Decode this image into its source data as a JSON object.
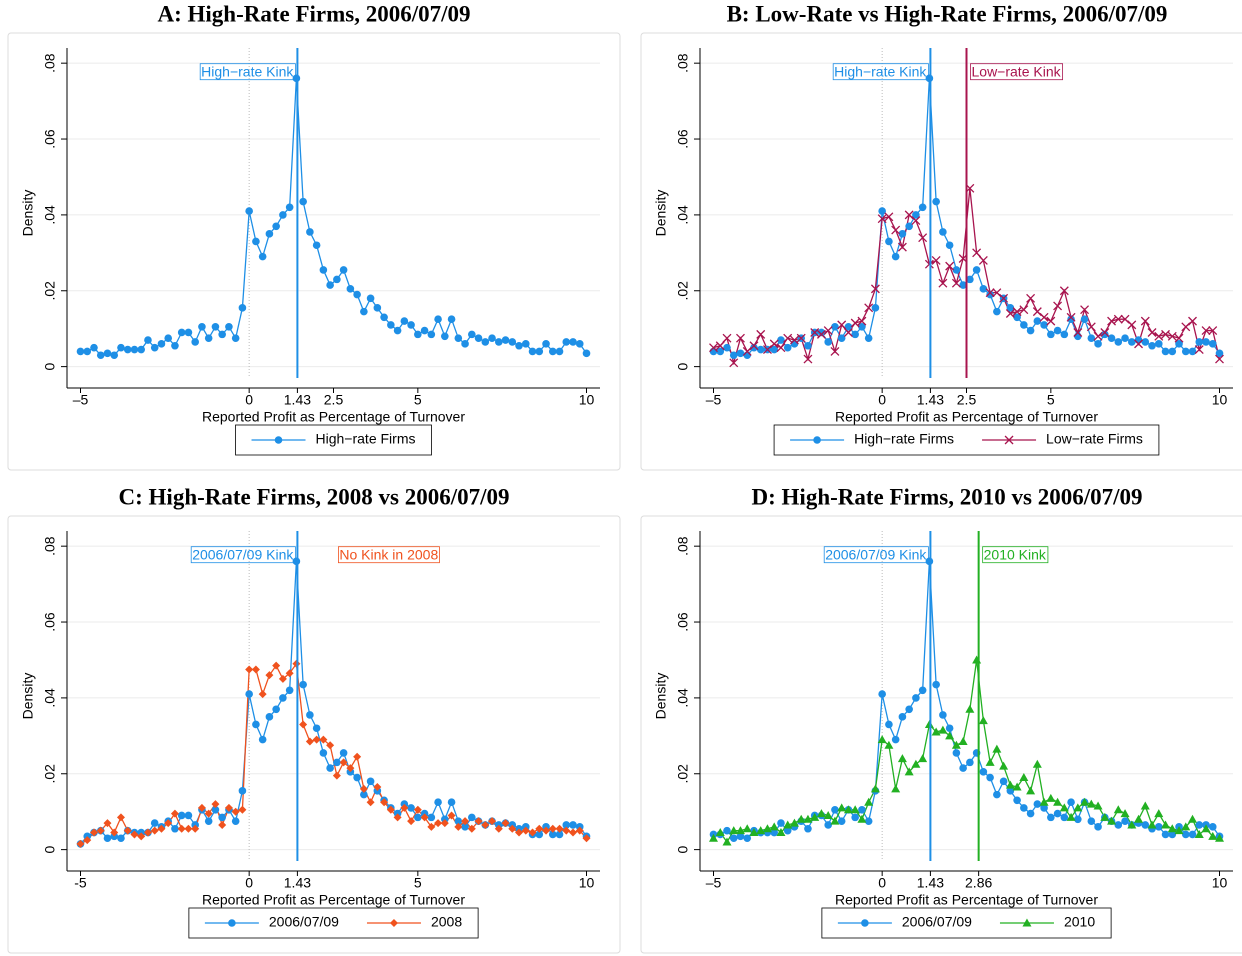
{
  "chart_data": [
    {
      "type": "line",
      "title": "A: High-Rate Firms, 2006/07/09",
      "xlabel": "Reported Profit as Percentage of Turnover",
      "ylabel": "Density",
      "x": [
        -5,
        -4.8,
        -4.6,
        -4.4,
        -4.2,
        -4,
        -3.8,
        -3.6,
        -3.4,
        -3.2,
        -3,
        -2.8,
        -2.6,
        -2.4,
        -2.2,
        -2,
        -1.8,
        -1.6,
        -1.4,
        -1.2,
        -1,
        -0.8,
        -0.6,
        -0.4,
        -0.2,
        0,
        0.2,
        0.4,
        0.6,
        0.8,
        1,
        1.2,
        1.4,
        1.6,
        1.8,
        2,
        2.2,
        2.4,
        2.6,
        2.8,
        3,
        3.2,
        3.4,
        3.6,
        3.8,
        4,
        4.2,
        4.4,
        4.6,
        4.8,
        5,
        5.2,
        5.4,
        5.6,
        5.8,
        6,
        6.2,
        6.4,
        6.6,
        6.8,
        7,
        7.2,
        7.4,
        7.6,
        7.8,
        8,
        8.2,
        8.4,
        8.6,
        8.8,
        9,
        9.2,
        9.4,
        9.6,
        9.8,
        10
      ],
      "series": [
        {
          "name": "High−rate Firms",
          "color": "#1e8fe6",
          "marker": "circle",
          "values": [
            0.004,
            0.004,
            0.005,
            0.003,
            0.0035,
            0.003,
            0.005,
            0.0045,
            0.0045,
            0.0045,
            0.007,
            0.005,
            0.006,
            0.0075,
            0.0055,
            0.009,
            0.009,
            0.0065,
            0.0105,
            0.0075,
            0.0105,
            0.0085,
            0.0105,
            0.0075,
            0.0155,
            0.041,
            0.033,
            0.029,
            0.035,
            0.037,
            0.04,
            0.042,
            0.076,
            0.0435,
            0.0355,
            0.032,
            0.0255,
            0.0215,
            0.023,
            0.0255,
            0.0205,
            0.019,
            0.0145,
            0.018,
            0.0155,
            0.013,
            0.011,
            0.0095,
            0.012,
            0.011,
            0.0085,
            0.0095,
            0.0085,
            0.0125,
            0.008,
            0.0125,
            0.0075,
            0.006,
            0.0085,
            0.0075,
            0.0065,
            0.0075,
            0.0065,
            0.007,
            0.0065,
            0.0055,
            0.006,
            0.004,
            0.004,
            0.006,
            0.004,
            0.004,
            0.0065,
            0.0065,
            0.006,
            0.0035
          ]
        }
      ],
      "xlim": [
        -5.4,
        10.4
      ],
      "ylim": [
        -0.003,
        0.084
      ],
      "xticks": [
        {
          "value": -5,
          "label": "–5"
        },
        0,
        1.43,
        2.5,
        5,
        10
      ],
      "yticks": [
        0,
        {
          "value": 0.02,
          "label": ".02"
        },
        {
          "value": 0.04,
          "label": ".04"
        },
        {
          "value": 0.06,
          "label": ".06"
        },
        {
          "value": 0.08,
          "label": ".08"
        }
      ],
      "grid": true,
      "dotted_vline": 0,
      "vlines": [
        {
          "x": 1.43,
          "label": "High−rate Kink",
          "color": "#1e8fe6",
          "side": "left"
        }
      ],
      "annotations": [],
      "legend": "bottom"
    },
    {
      "type": "line",
      "title": "B: Low-Rate vs High-Rate Firms, 2006/07/09",
      "xlabel": "Reported Profit as Percentage of Turnover",
      "ylabel": "Density",
      "x": [
        -5,
        -4.8,
        -4.6,
        -4.4,
        -4.2,
        -4,
        -3.8,
        -3.6,
        -3.4,
        -3.2,
        -3,
        -2.8,
        -2.6,
        -2.4,
        -2.2,
        -2,
        -1.8,
        -1.6,
        -1.4,
        -1.2,
        -1,
        -0.8,
        -0.6,
        -0.4,
        -0.2,
        0,
        0.2,
        0.4,
        0.6,
        0.8,
        1,
        1.2,
        1.4,
        1.6,
        1.8,
        2,
        2.2,
        2.4,
        2.6,
        2.8,
        3,
        3.2,
        3.4,
        3.6,
        3.8,
        4,
        4.2,
        4.4,
        4.6,
        4.8,
        5,
        5.2,
        5.4,
        5.6,
        5.8,
        6,
        6.2,
        6.4,
        6.6,
        6.8,
        7,
        7.2,
        7.4,
        7.6,
        7.8,
        8,
        8.2,
        8.4,
        8.6,
        8.8,
        9,
        9.2,
        9.4,
        9.6,
        9.8,
        10
      ],
      "series": [
        {
          "name": "High−rate Firms",
          "color": "#1e8fe6",
          "marker": "circle",
          "values": [
            0.004,
            0.004,
            0.005,
            0.003,
            0.0035,
            0.003,
            0.005,
            0.0045,
            0.0045,
            0.0045,
            0.007,
            0.005,
            0.006,
            0.0075,
            0.0055,
            0.009,
            0.009,
            0.0065,
            0.0105,
            0.0075,
            0.0105,
            0.0085,
            0.0105,
            0.0075,
            0.0155,
            0.041,
            0.033,
            0.029,
            0.035,
            0.037,
            0.04,
            0.042,
            0.076,
            0.0435,
            0.0355,
            0.032,
            0.0255,
            0.0215,
            0.023,
            0.0255,
            0.0205,
            0.019,
            0.0145,
            0.018,
            0.0155,
            0.013,
            0.011,
            0.0095,
            0.012,
            0.011,
            0.0085,
            0.0095,
            0.0085,
            0.0125,
            0.008,
            0.0125,
            0.0075,
            0.006,
            0.0085,
            0.0075,
            0.0065,
            0.0075,
            0.0065,
            0.007,
            0.0065,
            0.0055,
            0.006,
            0.004,
            0.004,
            0.006,
            0.004,
            0.004,
            0.0065,
            0.0065,
            0.006,
            0.0035
          ]
        },
        {
          "name": "Low−rate Firms",
          "color": "#a8144e",
          "marker": "x",
          "values": [
            0.005,
            0.0055,
            0.0075,
            0.001,
            0.0075,
            0.004,
            0.0055,
            0.0085,
            0.0045,
            0.006,
            0.005,
            0.0075,
            0.007,
            0.0075,
            0.002,
            0.009,
            0.0085,
            0.0095,
            0.004,
            0.011,
            0.009,
            0.0115,
            0.012,
            0.0155,
            0.0205,
            0.039,
            0.0395,
            0.036,
            0.0315,
            0.04,
            0.0385,
            0.034,
            0.027,
            0.028,
            0.022,
            0.0265,
            0.022,
            0.0285,
            0.047,
            0.03,
            0.028,
            0.0195,
            0.0195,
            0.018,
            0.014,
            0.0145,
            0.015,
            0.018,
            0.0145,
            0.013,
            0.012,
            0.016,
            0.02,
            0.013,
            0.009,
            0.015,
            0.0105,
            0.008,
            0.009,
            0.012,
            0.0125,
            0.0125,
            0.011,
            0.006,
            0.012,
            0.009,
            0.008,
            0.0085,
            0.008,
            0.0075,
            0.0105,
            0.012,
            0.0045,
            0.0095,
            0.0095,
            0.002
          ]
        }
      ],
      "xlim": [
        -5.4,
        10.4
      ],
      "ylim": [
        -0.003,
        0.084
      ],
      "xticks": [
        {
          "value": -5,
          "label": "–5"
        },
        0,
        1.43,
        2.5,
        5,
        10
      ],
      "yticks": [
        0,
        {
          "value": 0.02,
          "label": ".02"
        },
        {
          "value": 0.04,
          "label": ".04"
        },
        {
          "value": 0.06,
          "label": ".06"
        },
        {
          "value": 0.08,
          "label": ".08"
        }
      ],
      "grid": true,
      "dotted_vline": 0,
      "vlines": [
        {
          "x": 1.43,
          "label": "High−rate Kink",
          "color": "#1e8fe6",
          "side": "left"
        },
        {
          "x": 2.5,
          "label": "Low−rate Kink",
          "color": "#a8144e",
          "side": "right"
        }
      ],
      "annotations": [],
      "legend": "bottom"
    },
    {
      "type": "line",
      "title": "C: High-Rate Firms, 2008 vs 2006/07/09",
      "xlabel": "Reported Profit as Percentage of Turnover",
      "ylabel": "Density",
      "x": [
        -5,
        -4.8,
        -4.6,
        -4.4,
        -4.2,
        -4,
        -3.8,
        -3.6,
        -3.4,
        -3.2,
        -3,
        -2.8,
        -2.6,
        -2.4,
        -2.2,
        -2,
        -1.8,
        -1.6,
        -1.4,
        -1.2,
        -1,
        -0.8,
        -0.6,
        -0.4,
        -0.2,
        0,
        0.2,
        0.4,
        0.6,
        0.8,
        1,
        1.2,
        1.4,
        1.6,
        1.8,
        2,
        2.2,
        2.4,
        2.6,
        2.8,
        3,
        3.2,
        3.4,
        3.6,
        3.8,
        4,
        4.2,
        4.4,
        4.6,
        4.8,
        5,
        5.2,
        5.4,
        5.6,
        5.8,
        6,
        6.2,
        6.4,
        6.6,
        6.8,
        7,
        7.2,
        7.4,
        7.6,
        7.8,
        8,
        8.2,
        8.4,
        8.6,
        8.8,
        9,
        9.2,
        9.4,
        9.6,
        9.8,
        10
      ],
      "series": [
        {
          "name": "2006/07/09",
          "color": "#1e8fe6",
          "marker": "circle",
          "values": [
            0.0015,
            0.0035,
            0.0045,
            0.005,
            0.003,
            0.0035,
            0.003,
            0.005,
            0.0045,
            0.0045,
            0.0045,
            0.007,
            0.006,
            0.0075,
            0.0055,
            0.009,
            0.009,
            0.0065,
            0.0105,
            0.0075,
            0.0105,
            0.0085,
            0.0105,
            0.0075,
            0.0155,
            0.041,
            0.033,
            0.029,
            0.035,
            0.037,
            0.04,
            0.042,
            0.076,
            0.0435,
            0.0355,
            0.032,
            0.0255,
            0.0215,
            0.023,
            0.0255,
            0.0205,
            0.019,
            0.0145,
            0.018,
            0.0155,
            0.013,
            0.011,
            0.0095,
            0.012,
            0.011,
            0.0085,
            0.0095,
            0.0085,
            0.0125,
            0.008,
            0.0125,
            0.0075,
            0.006,
            0.0085,
            0.0075,
            0.0065,
            0.0075,
            0.0065,
            0.007,
            0.0065,
            0.0055,
            0.006,
            0.004,
            0.004,
            0.006,
            0.004,
            0.004,
            0.0065,
            0.0065,
            0.006,
            0.0035
          ]
        },
        {
          "name": "2008",
          "color": "#f0521e",
          "marker": "diamond",
          "values": [
            0.0015,
            0.0025,
            0.0045,
            0.005,
            0.007,
            0.0045,
            0.0085,
            0.005,
            0.004,
            0.0035,
            0.0045,
            0.005,
            0.0055,
            0.007,
            0.0095,
            0.0055,
            0.0055,
            0.0055,
            0.011,
            0.0095,
            0.012,
            0.0065,
            0.011,
            0.01,
            0.0105,
            0.0475,
            0.0475,
            0.041,
            0.046,
            0.0485,
            0.045,
            0.0465,
            0.049,
            0.033,
            0.0285,
            0.029,
            0.029,
            0.0275,
            0.0195,
            0.023,
            0.0215,
            0.0245,
            0.016,
            0.0125,
            0.0165,
            0.0125,
            0.0105,
            0.0085,
            0.011,
            0.0075,
            0.0105,
            0.0085,
            0.006,
            0.007,
            0.007,
            0.009,
            0.006,
            0.0075,
            0.0055,
            0.0075,
            0.0065,
            0.0075,
            0.0055,
            0.007,
            0.0055,
            0.0045,
            0.005,
            0.0045,
            0.0055,
            0.005,
            0.0055,
            0.0055,
            0.005,
            0.0045,
            0.005,
            0.003
          ]
        }
      ],
      "xlim": [
        -5.4,
        10.4
      ],
      "ylim": [
        -0.003,
        0.084
      ],
      "xticks": [
        -5,
        0,
        1.43,
        5,
        10
      ],
      "yticks": [
        0,
        {
          "value": 0.02,
          "label": ".02"
        },
        {
          "value": 0.04,
          "label": ".04"
        },
        {
          "value": 0.06,
          "label": ".06"
        },
        {
          "value": 0.08,
          "label": ".08"
        }
      ],
      "grid": true,
      "dotted_vline": 0,
      "vlines": [
        {
          "x": 1.43,
          "label": "2006/07/09 Kink",
          "color": "#1e8fe6",
          "side": "left"
        }
      ],
      "annotations": [
        {
          "text": "No Kink in 2008",
          "color": "#f0521e"
        }
      ],
      "legend": "bottom"
    },
    {
      "type": "line",
      "title": "D: High-Rate Firms, 2010 vs 2006/07/09",
      "xlabel": "Reported Profit as Percentage of Turnover",
      "ylabel": "Density",
      "x": [
        -5,
        -4.8,
        -4.6,
        -4.4,
        -4.2,
        -4,
        -3.8,
        -3.6,
        -3.4,
        -3.2,
        -3,
        -2.8,
        -2.6,
        -2.4,
        -2.2,
        -2,
        -1.8,
        -1.6,
        -1.4,
        -1.2,
        -1,
        -0.8,
        -0.6,
        -0.4,
        -0.2,
        0,
        0.2,
        0.4,
        0.6,
        0.8,
        1,
        1.2,
        1.4,
        1.6,
        1.8,
        2,
        2.2,
        2.4,
        2.6,
        2.8,
        3,
        3.2,
        3.4,
        3.6,
        3.8,
        4,
        4.2,
        4.4,
        4.6,
        4.8,
        5,
        5.2,
        5.4,
        5.6,
        5.8,
        6,
        6.2,
        6.4,
        6.6,
        6.8,
        7,
        7.2,
        7.4,
        7.6,
        7.8,
        8,
        8.2,
        8.4,
        8.6,
        8.8,
        9,
        9.2,
        9.4,
        9.6,
        9.8,
        10
      ],
      "series": [
        {
          "name": "2006/07/09",
          "color": "#1e8fe6",
          "marker": "circle",
          "values": [
            0.004,
            0.004,
            0.005,
            0.003,
            0.0035,
            0.003,
            0.005,
            0.0045,
            0.0045,
            0.0045,
            0.007,
            0.005,
            0.006,
            0.0075,
            0.0055,
            0.009,
            0.009,
            0.0065,
            0.0105,
            0.0075,
            0.0105,
            0.0085,
            0.0105,
            0.0075,
            0.0155,
            0.041,
            0.033,
            0.029,
            0.035,
            0.037,
            0.04,
            0.042,
            0.076,
            0.0435,
            0.0355,
            0.032,
            0.0255,
            0.0215,
            0.023,
            0.0255,
            0.0205,
            0.019,
            0.0145,
            0.018,
            0.0155,
            0.013,
            0.011,
            0.0095,
            0.012,
            0.011,
            0.0085,
            0.0095,
            0.0085,
            0.0125,
            0.008,
            0.0125,
            0.0075,
            0.006,
            0.0085,
            0.0075,
            0.0065,
            0.0075,
            0.0065,
            0.007,
            0.0065,
            0.0055,
            0.006,
            0.004,
            0.004,
            0.006,
            0.004,
            0.004,
            0.0065,
            0.0065,
            0.006,
            0.0035
          ]
        },
        {
          "name": "2010",
          "color": "#22b022",
          "marker": "triangle",
          "values": [
            0.003,
            0.0045,
            0.002,
            0.005,
            0.005,
            0.0055,
            0.0045,
            0.005,
            0.0055,
            0.006,
            0.0045,
            0.0065,
            0.007,
            0.008,
            0.008,
            0.0085,
            0.0095,
            0.009,
            0.0075,
            0.011,
            0.0105,
            0.0105,
            0.008,
            0.0125,
            0.016,
            0.029,
            0.0275,
            0.016,
            0.024,
            0.0205,
            0.0225,
            0.024,
            0.033,
            0.031,
            0.0315,
            0.03,
            0.0275,
            0.0285,
            0.037,
            0.05,
            0.034,
            0.023,
            0.0265,
            0.022,
            0.017,
            0.0165,
            0.019,
            0.0155,
            0.0225,
            0.0125,
            0.0135,
            0.0125,
            0.011,
            0.0085,
            0.011,
            0.0125,
            0.012,
            0.0115,
            0.0085,
            0.0075,
            0.0105,
            0.0095,
            0.0065,
            0.008,
            0.0115,
            0.0065,
            0.0095,
            0.0065,
            0.0055,
            0.005,
            0.006,
            0.008,
            0.004,
            0.0055,
            0.0035,
            0.003
          ]
        }
      ],
      "xlim": [
        -5.4,
        10.4
      ],
      "ylim": [
        -0.003,
        0.084
      ],
      "xticks": [
        {
          "value": -5,
          "label": "–5"
        },
        0,
        1.43,
        2.86,
        10
      ],
      "yticks": [
        0,
        {
          "value": 0.02,
          "label": ".02"
        },
        {
          "value": 0.04,
          "label": ".04"
        },
        {
          "value": 0.06,
          "label": ".06"
        },
        {
          "value": 0.08,
          "label": ".08"
        }
      ],
      "grid": true,
      "dotted_vline": 0,
      "vlines": [
        {
          "x": 1.43,
          "label": "2006/07/09 Kink",
          "color": "#1e8fe6",
          "side": "left"
        },
        {
          "x": 2.86,
          "label": "2010 Kink",
          "color": "#22b022",
          "side": "right"
        }
      ],
      "annotations": [],
      "legend": "bottom"
    }
  ]
}
